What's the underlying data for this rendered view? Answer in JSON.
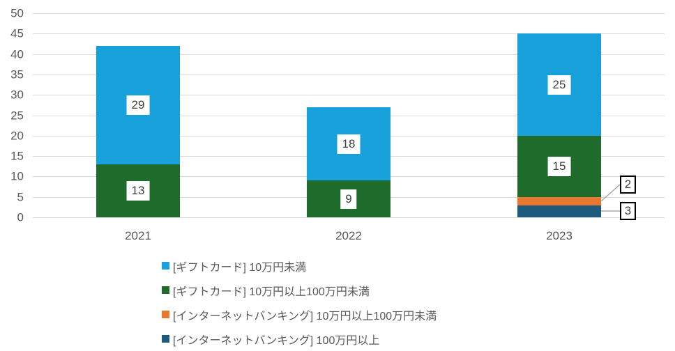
{
  "chart_data": {
    "type": "bar",
    "stacked": true,
    "title": "",
    "xlabel": "",
    "ylabel": "",
    "categories": [
      "2021",
      "2022",
      "2023"
    ],
    "series": [
      {
        "name": "[ギフトカード] 10万円未満",
        "color": "#18A0DB",
        "values": [
          29,
          18,
          25
        ],
        "label_style": "inside"
      },
      {
        "name": "[ギフトカード] 10万円以上100万円未満",
        "color": "#1E6B2B",
        "values": [
          13,
          9,
          15
        ],
        "label_style": "inside"
      },
      {
        "name": "[インターネットバンキング] 10万円以上100万円未満",
        "color": "#E8772F",
        "values": [
          0,
          0,
          2
        ],
        "label_style": "callout"
      },
      {
        "name": "[インターネットバンキング] 100万円以上",
        "color": "#1D5A7B",
        "values": [
          0,
          0,
          3
        ],
        "label_style": "callout"
      }
    ],
    "stack_order": "legend-reverse",
    "totals": [
      42,
      27,
      45
    ],
    "ylim": [
      0,
      50
    ],
    "ytick_step": 5,
    "grid": true,
    "legend_position": "bottom"
  },
  "colors": {
    "background": "#FFFFFF",
    "gridline": "#D9D9D9",
    "axis_text": "#595959",
    "label_text": "#404040",
    "leader_line": "#A6A6A6",
    "callout_border": "#000000",
    "label_box_bg": "#FFFFFF"
  }
}
